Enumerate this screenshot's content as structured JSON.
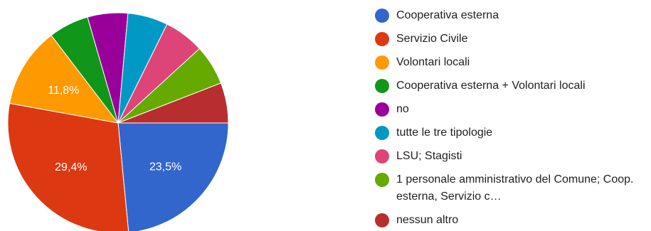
{
  "chart_data": {
    "type": "pie",
    "title": "",
    "slices": [
      {
        "label": "Cooperativa esterna",
        "value": 23.5,
        "color": "#3366cc",
        "display_label": "23,5%"
      },
      {
        "label": "Servizio Civile",
        "value": 29.4,
        "color": "#dc3912",
        "display_label": "29,4%"
      },
      {
        "label": "Volontari locali",
        "value": 11.8,
        "color": "#ff9900",
        "display_label": "11,8%"
      },
      {
        "label": "Cooperativa esterna + Volontari locali",
        "value": 5.9,
        "color": "#109618",
        "display_label": ""
      },
      {
        "label": "no",
        "value": 5.9,
        "color": "#990099",
        "display_label": ""
      },
      {
        "label": "tutte le tre tipologie",
        "value": 5.9,
        "color": "#0099c6",
        "display_label": ""
      },
      {
        "label": "LSU; Stagisti",
        "value": 5.9,
        "color": "#dd4477",
        "display_label": ""
      },
      {
        "label": "1 personale amministrativo del Comune; Coop. esterna, Servizio c…",
        "value": 5.9,
        "color": "#66aa00",
        "display_label": ""
      },
      {
        "label": "nessun altro",
        "value": 5.9,
        "color": "#b82e2e",
        "display_label": ""
      }
    ],
    "legend_position": "right"
  }
}
